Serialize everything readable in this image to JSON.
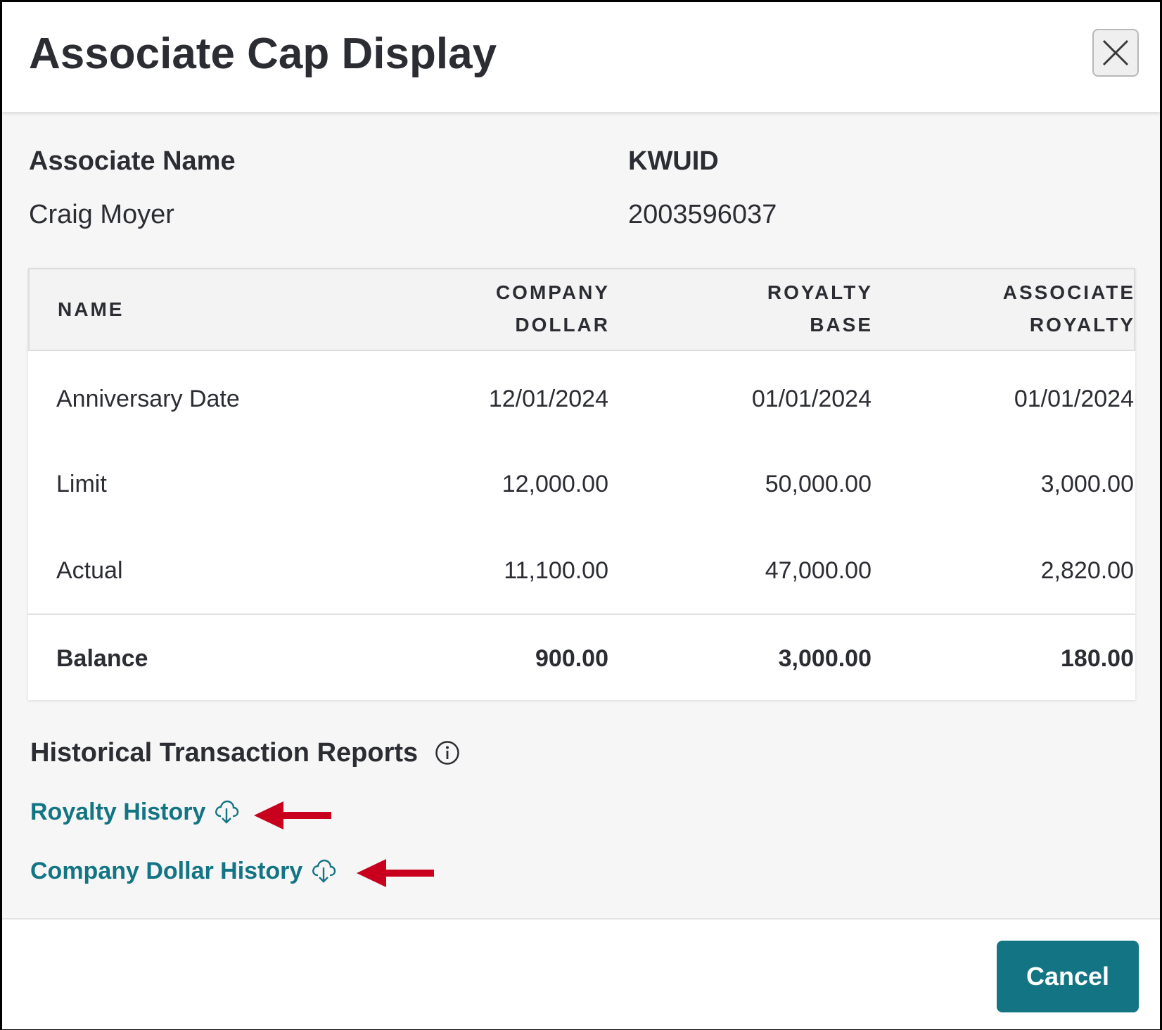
{
  "modal": {
    "title": "Associate Cap Display",
    "close_icon": "close-icon"
  },
  "associate": {
    "name_label": "Associate Name",
    "name_value": "Craig Moyer",
    "id_label": "KWUID",
    "id_value": "2003596037"
  },
  "table": {
    "headers": {
      "name": "NAME",
      "company_dollar": [
        "COMPANY",
        "DOLLAR"
      ],
      "royalty_base": [
        "ROYALTY",
        "BASE"
      ],
      "associate_royalty": [
        "ASSOCIATE",
        "ROYALTY"
      ]
    },
    "rows": [
      {
        "name": "Anniversary Date",
        "company_dollar": "12/01/2024",
        "royalty_base": "01/01/2024",
        "associate_royalty": "01/01/2024"
      },
      {
        "name": "Limit",
        "company_dollar": "12,000.00",
        "royalty_base": "50,000.00",
        "associate_royalty": "3,000.00"
      },
      {
        "name": "Actual",
        "company_dollar": "11,100.00",
        "royalty_base": "47,000.00",
        "associate_royalty": "2,820.00"
      }
    ],
    "total": {
      "name": "Balance",
      "company_dollar": "900.00",
      "royalty_base": "3,000.00",
      "associate_royalty": "180.00"
    }
  },
  "reports": {
    "title": "Historical Transaction Reports",
    "info_icon": "info-icon",
    "links": [
      {
        "label": "Royalty History",
        "icon": "cloud-download-icon"
      },
      {
        "label": "Company Dollar History",
        "icon": "cloud-download-icon"
      }
    ],
    "annotation_color": "#c8001e",
    "link_color": "#137484"
  },
  "footer": {
    "cancel_label": "Cancel"
  }
}
